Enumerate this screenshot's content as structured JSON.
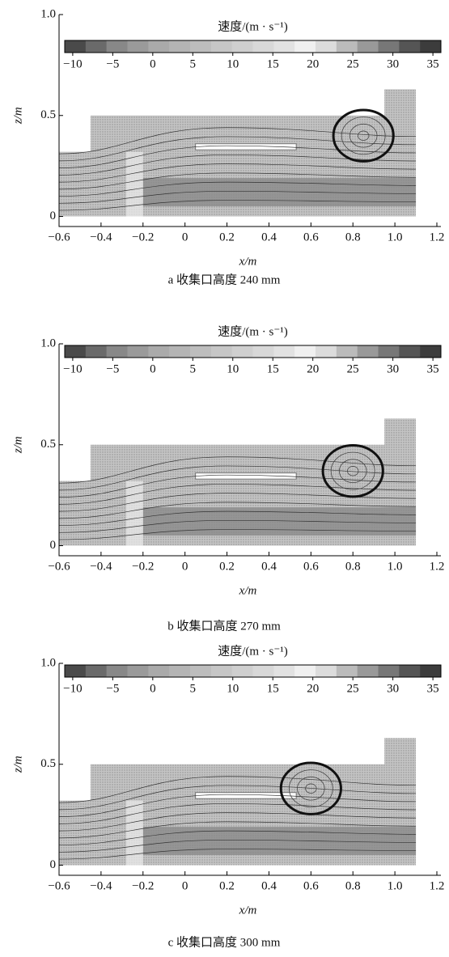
{
  "chart_data": [
    {
      "type": "streamline",
      "caption": "a 收集口高度 240 mm",
      "xlabel": "x/m",
      "ylabel": "z/m",
      "colorbar_label": "速度/(m · s⁻¹)",
      "colorbar_lim": [
        -11,
        36
      ],
      "colorbar_ticks": [
        {
          "value": -10,
          "label": "−10"
        },
        {
          "value": -5,
          "label": "−5"
        },
        0,
        5,
        10,
        15,
        20,
        25,
        30,
        35
      ],
      "colorbar_colors": [
        "#4a4a4a",
        "#6a6a6a",
        "#888",
        "#9a9a9a",
        "#aaa",
        "#b4b4b4",
        "#bdbdbd",
        "#c6c6c6",
        "#cfcfcf",
        "#d8d8d8",
        "#e2e2e2",
        "#f0f0f0",
        "#dcdcdc",
        "#bbb",
        "#999",
        "#777",
        "#555",
        "#3c3c3c"
      ],
      "xlim": [
        -0.6,
        1.2
      ],
      "ylim": [
        -0.05,
        1.0
      ],
      "xticks": [
        {
          "value": -0.6,
          "label": "−0.6"
        },
        {
          "value": -0.4,
          "label": "−0.4"
        },
        {
          "value": -0.2,
          "label": "−0.2"
        },
        0,
        0.2,
        0.4,
        0.6,
        0.8,
        {
          "value": 1,
          "label": "1.0"
        },
        1.2
      ],
      "yticks": [
        0,
        0.5,
        {
          "value": 1,
          "label": "1.0"
        }
      ]
    },
    {
      "type": "streamline",
      "caption": "b 收集口高度 270 mm",
      "xlabel": "x/m",
      "ylabel": "z/m",
      "colorbar_label": "速度/(m · s⁻¹)",
      "colorbar_lim": [
        -11,
        36
      ],
      "colorbar_ticks": [
        {
          "value": -10,
          "label": "−10"
        },
        {
          "value": -5,
          "label": "−5"
        },
        0,
        5,
        10,
        15,
        20,
        25,
        30,
        35
      ],
      "colorbar_colors": [
        "#4a4a4a",
        "#6a6a6a",
        "#888",
        "#9a9a9a",
        "#aaa",
        "#b4b4b4",
        "#bdbdbd",
        "#c6c6c6",
        "#cfcfcf",
        "#d8d8d8",
        "#e2e2e2",
        "#f0f0f0",
        "#dcdcdc",
        "#bbb",
        "#999",
        "#777",
        "#555",
        "#3c3c3c"
      ],
      "xlim": [
        -0.6,
        1.2
      ],
      "ylim": [
        -0.05,
        1.0
      ],
      "xticks": [
        {
          "value": -0.6,
          "label": "−0.6"
        },
        {
          "value": -0.4,
          "label": "−0.4"
        },
        {
          "value": -0.2,
          "label": "−0.2"
        },
        0,
        0.2,
        0.4,
        0.6,
        0.8,
        {
          "value": 1,
          "label": "1.0"
        },
        1.2
      ],
      "yticks": [
        0,
        0.5,
        {
          "value": 1,
          "label": "1.0"
        }
      ]
    },
    {
      "type": "streamline",
      "caption": "c 收集口高度 300 mm",
      "xlabel": "x/m",
      "ylabel": "z/m",
      "colorbar_label": "速度/(m · s⁻¹)",
      "colorbar_lim": [
        -11,
        36
      ],
      "colorbar_ticks": [
        {
          "value": -10,
          "label": "−10"
        },
        {
          "value": -5,
          "label": "−5"
        },
        0,
        5,
        10,
        15,
        20,
        25,
        30,
        35
      ],
      "colorbar_colors": [
        "#4a4a4a",
        "#6a6a6a",
        "#888",
        "#9a9a9a",
        "#aaa",
        "#b4b4b4",
        "#bdbdbd",
        "#c6c6c6",
        "#cfcfcf",
        "#d8d8d8",
        "#e2e2e2",
        "#f0f0f0",
        "#dcdcdc",
        "#bbb",
        "#999",
        "#777",
        "#555",
        "#3c3c3c"
      ],
      "xlim": [
        -0.6,
        1.2
      ],
      "ylim": [
        -0.05,
        1.0
      ],
      "xticks": [
        {
          "value": -0.6,
          "label": "−0.6"
        },
        {
          "value": -0.4,
          "label": "−0.4"
        },
        {
          "value": -0.2,
          "label": "−0.2"
        },
        0,
        0.2,
        0.4,
        0.6,
        0.8,
        {
          "value": 1,
          "label": "1.0"
        },
        1.2
      ],
      "yticks": [
        0,
        0.5,
        {
          "value": 1,
          "label": "1.0"
        }
      ]
    }
  ]
}
